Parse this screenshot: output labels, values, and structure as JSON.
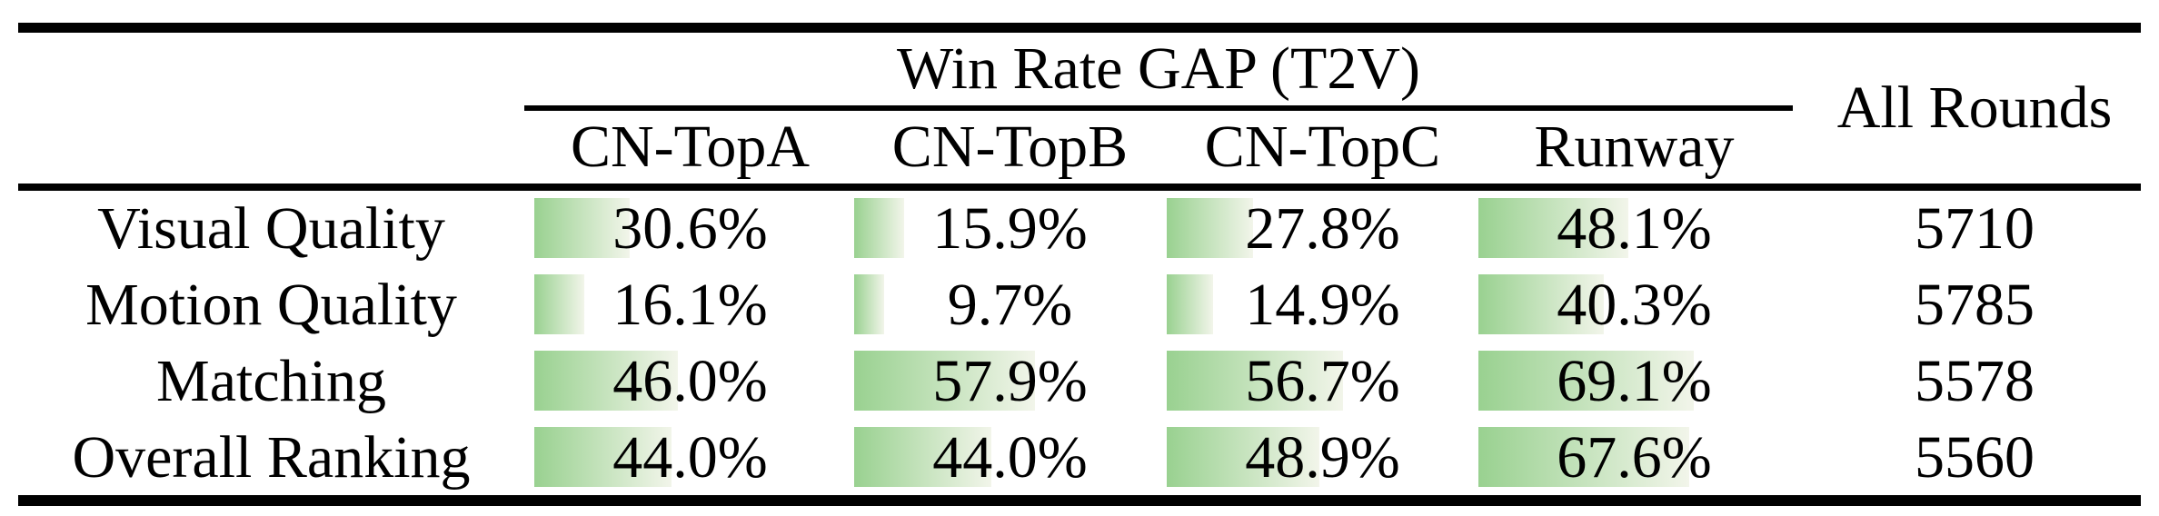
{
  "table": {
    "group_header": {
      "label": "Win Rate GAP (T2V)"
    },
    "all_rounds_header": {
      "label": "All Rounds"
    },
    "columns": [
      {
        "label": "CN-TopA"
      },
      {
        "label": "CN-TopB"
      },
      {
        "label": "CN-TopC"
      },
      {
        "label": "Runway"
      }
    ],
    "rows": [
      {
        "label": "Visual Quality",
        "cells": [
          {
            "pct": 30.6,
            "text": "30.6%"
          },
          {
            "pct": 15.9,
            "text": "15.9%"
          },
          {
            "pct": 27.8,
            "text": "27.8%"
          },
          {
            "pct": 48.1,
            "text": "48.1%"
          }
        ],
        "all_rounds": "5710"
      },
      {
        "label": "Motion Quality",
        "cells": [
          {
            "pct": 16.1,
            "text": "16.1%"
          },
          {
            "pct": 9.7,
            "text": "9.7%"
          },
          {
            "pct": 14.9,
            "text": "14.9%"
          },
          {
            "pct": 40.3,
            "text": "40.3%"
          }
        ],
        "all_rounds": "5785"
      },
      {
        "label": "Matching",
        "cells": [
          {
            "pct": 46.0,
            "text": "46.0%"
          },
          {
            "pct": 57.9,
            "text": "57.9%"
          },
          {
            "pct": 56.7,
            "text": "56.7%"
          },
          {
            "pct": 69.1,
            "text": "69.1%"
          }
        ],
        "all_rounds": "5578"
      },
      {
        "label": "Overall Ranking",
        "cells": [
          {
            "pct": 44.0,
            "text": "44.0%"
          },
          {
            "pct": 44.0,
            "text": "44.0%"
          },
          {
            "pct": 48.9,
            "text": "48.9%"
          },
          {
            "pct": 67.6,
            "text": "67.6%"
          }
        ],
        "all_rounds": "5560"
      }
    ],
    "colors": {
      "bar_gradient_start": "#99d190",
      "bar_gradient_end": "#f2f5ea",
      "rule": "#000000",
      "text": "#000000",
      "background": "#ffffff"
    }
  },
  "chart_data": {
    "type": "table",
    "title": "Win Rate GAP (T2V)",
    "categories": [
      "Visual Quality",
      "Motion Quality",
      "Matching",
      "Overall Ranking"
    ],
    "series": [
      {
        "name": "CN-TopA",
        "values": [
          30.6,
          16.1,
          46.0,
          44.0
        ]
      },
      {
        "name": "CN-TopB",
        "values": [
          15.9,
          9.7,
          57.9,
          44.0
        ]
      },
      {
        "name": "CN-TopC",
        "values": [
          27.8,
          14.9,
          56.7,
          48.9
        ]
      },
      {
        "name": "Runway",
        "values": [
          48.1,
          40.3,
          69.1,
          67.6
        ]
      }
    ],
    "extra_columns": [
      {
        "name": "All Rounds",
        "values": [
          5710,
          5785,
          5578,
          5560
        ]
      }
    ],
    "unit": "%",
    "bar_scale": {
      "min": 0,
      "max": 100
    },
    "layout": {
      "bars": "in-cell horizontal, left-anchored, green gradient",
      "grid": "booktabs rules"
    }
  }
}
